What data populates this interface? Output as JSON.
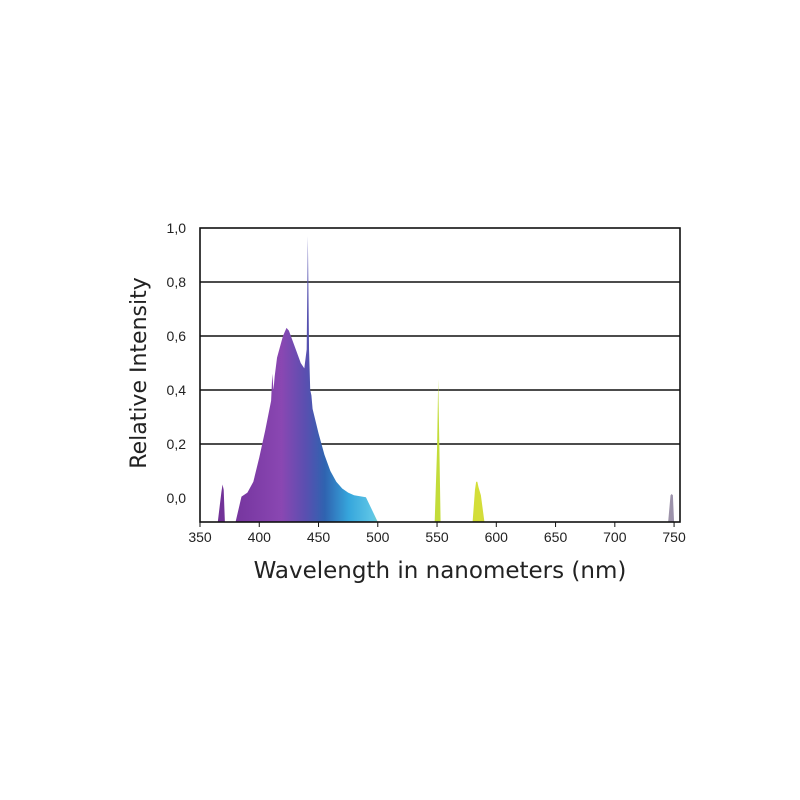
{
  "chart_data": {
    "type": "area",
    "title": "",
    "xlabel": "Wavelength in nanometers (nm)",
    "ylabel": "Relative Intensity",
    "xlim": [
      350,
      755
    ],
    "ylim": [
      0,
      1.0
    ],
    "grid": "horizontal",
    "legend": "none",
    "x_ticks": [
      "350",
      "400",
      "450",
      "500",
      "550",
      "600",
      "650",
      "700",
      "750"
    ],
    "y_ticks": [
      "0,0",
      "0,2",
      "0,4",
      "0,6",
      "0,8",
      "1,0"
    ],
    "series": [
      {
        "x": [
          360,
          365,
          368,
          369,
          370,
          371,
          373,
          380,
          385,
          390,
          395,
          400,
          405,
          410,
          411,
          412,
          413,
          415,
          420,
          423,
          425,
          430,
          435,
          438,
          440,
          441,
          442,
          443,
          444,
          445,
          450,
          455,
          460,
          465,
          470,
          475,
          480,
          490,
          500,
          520,
          548,
          550,
          551,
          552,
          553,
          555,
          580,
          582,
          583,
          584,
          585,
          587,
          590,
          620,
          700,
          745,
          747,
          748,
          749,
          750,
          755
        ],
        "y": [
          0.0,
          0.0,
          0.02,
          0.05,
          0.03,
          0.0,
          0.0,
          0.0,
          0.005,
          0.02,
          0.06,
          0.15,
          0.25,
          0.36,
          0.46,
          0.4,
          0.45,
          0.52,
          0.6,
          0.63,
          0.62,
          0.56,
          0.5,
          0.48,
          0.55,
          0.97,
          0.55,
          0.4,
          0.38,
          0.33,
          0.24,
          0.16,
          0.1,
          0.06,
          0.035,
          0.02,
          0.01,
          0.003,
          0.0,
          0.0,
          0.0,
          0.18,
          0.44,
          0.18,
          0.0,
          0.0,
          0.0,
          0.03,
          0.06,
          0.06,
          0.04,
          0.01,
          0.0,
          0.0,
          0.0,
          0.0,
          0.01,
          0.015,
          0.01,
          0.0,
          0.0
        ]
      }
    ]
  },
  "colors": {
    "violet": "#5e2a8a",
    "purple": "#8a44b0",
    "blue": "#2e5fa8",
    "cyan": "#33aee0",
    "green_yellow": "#c8dc3a",
    "grid": "#111111"
  }
}
